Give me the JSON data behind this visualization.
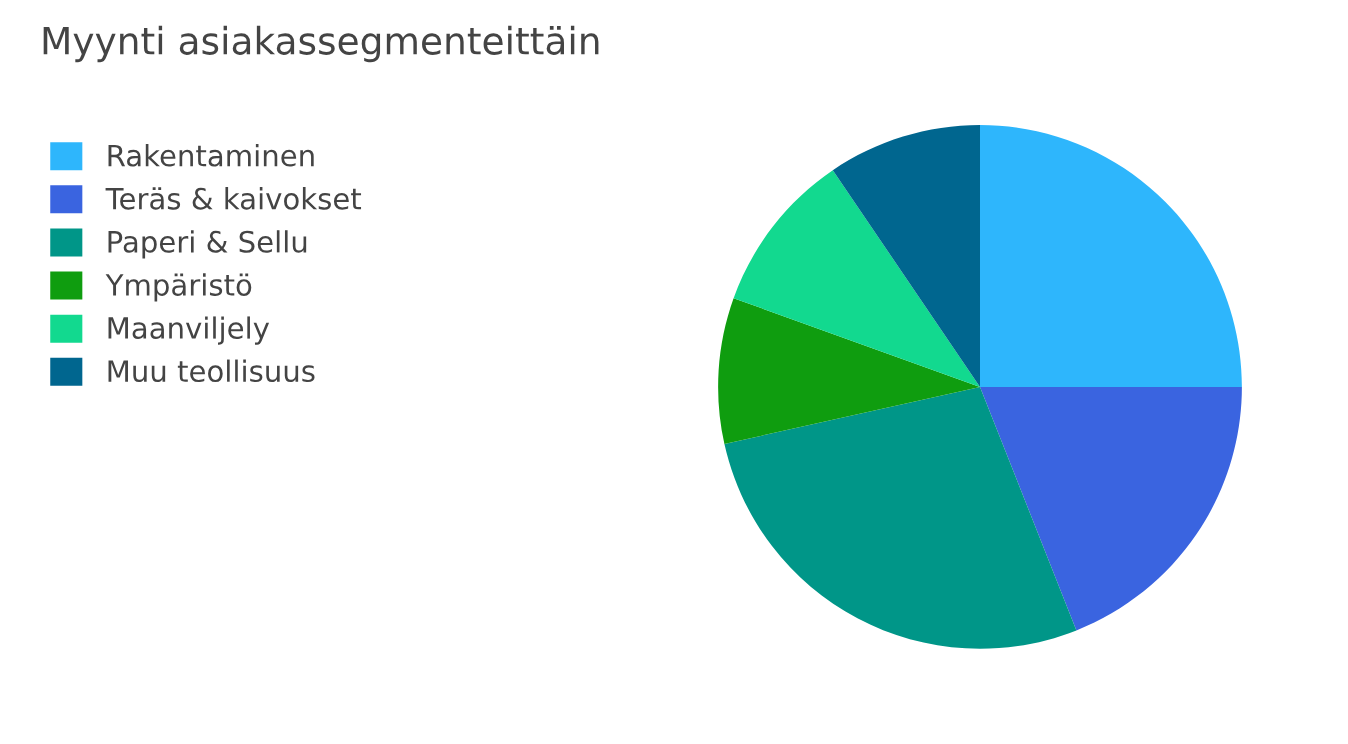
{
  "chart_data": {
    "type": "pie",
    "title": "Myynti asiakassegmenteittäin",
    "categories": [
      "Rakentaminen",
      "Teräs & kaivokset",
      "Paperi & Sellu",
      "Ympäristö",
      "Maanviljely",
      "Muu teollisuus"
    ],
    "values": [
      25,
      19,
      27.5,
      9,
      10,
      9.5
    ],
    "colors": [
      "#2eb6fc",
      "#3a64e0",
      "#009688",
      "#0f9d0f",
      "#12d98f",
      "#00668f"
    ],
    "legend": "left"
  }
}
